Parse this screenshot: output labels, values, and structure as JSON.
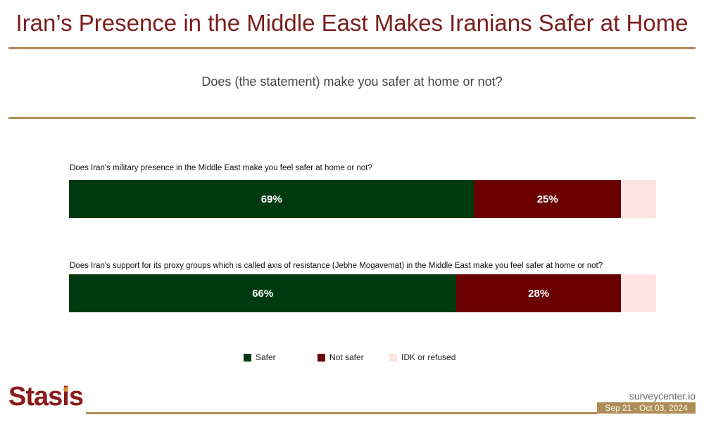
{
  "header": {
    "title": "Iran’s Presence in the Middle East Makes Iranians Safer at Home",
    "subtitle": "Does (the statement) make you safer at home or not?"
  },
  "chart_data": {
    "type": "bar",
    "orientation": "horizontal",
    "stacked": true,
    "categories": [
      "Does Iran's military presence in the Middle East make you feel safer at home or not?",
      "Does Iran's support for its proxy groups which is called axis of resistance (Jebhe Mogavemat) in the Middle East make you feel safer at home or not?"
    ],
    "series": [
      {
        "name": "Safer",
        "values": [
          69,
          66
        ],
        "labels": [
          "69%",
          "66%"
        ],
        "color": "#003a10"
      },
      {
        "name": "Not safer",
        "values": [
          25,
          28
        ],
        "labels": [
          "25%",
          "28%"
        ],
        "color": "#6b0000"
      },
      {
        "name": "IDK or refused",
        "values": [
          6,
          6
        ],
        "color": "#fde3e1"
      }
    ],
    "xlim": [
      0,
      100
    ],
    "legend_position": "bottom",
    "grid": false
  },
  "legend": {
    "items": [
      {
        "label": "Safer",
        "color": "#003a10"
      },
      {
        "label": "Not safer",
        "color": "#6b0000"
      },
      {
        "label": "IDK or refused",
        "color": "#fde3e1"
      }
    ]
  },
  "footer": {
    "brand": "Stasis",
    "site": "surveycenter.io",
    "date_range": "Sep 21 - Oct 03, 2024"
  }
}
